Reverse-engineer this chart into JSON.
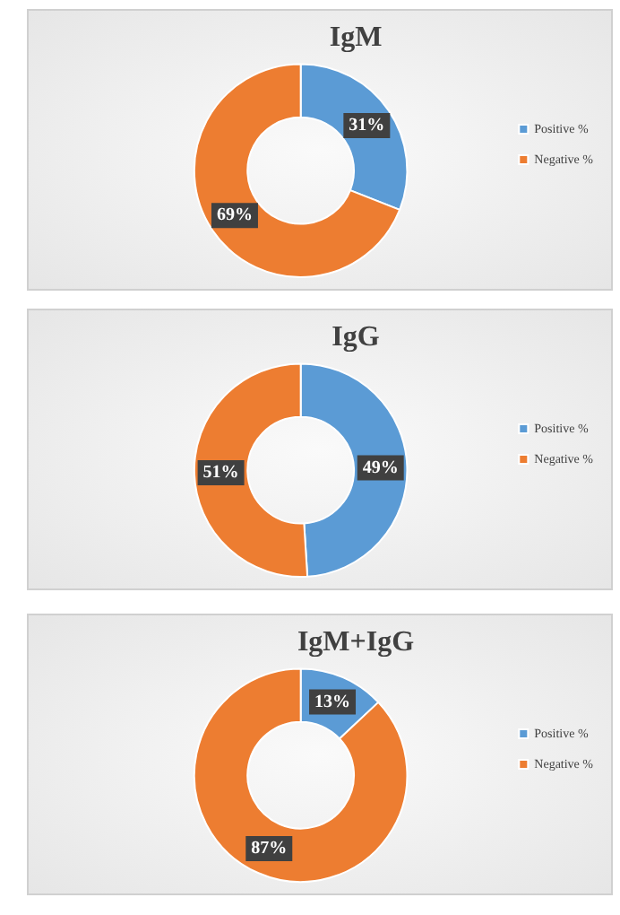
{
  "chart_data": [
    {
      "type": "donut",
      "title": "IgM",
      "categories": [
        "Positive %",
        "Negative %"
      ],
      "values": [
        31,
        69
      ],
      "colors": [
        "#5b9bd5",
        "#ed7d31"
      ],
      "value_labels": [
        "31%",
        "69%"
      ],
      "legend": "right"
    },
    {
      "type": "donut",
      "title": "IgG",
      "categories": [
        "Positive %",
        "Negative %"
      ],
      "values": [
        49,
        51
      ],
      "colors": [
        "#5b9bd5",
        "#ed7d31"
      ],
      "value_labels": [
        "49%",
        "51%"
      ],
      "legend": "right"
    },
    {
      "type": "donut",
      "title": "IgM+IgG",
      "categories": [
        "Positive %",
        "Negative %"
      ],
      "values": [
        13,
        87
      ],
      "colors": [
        "#5b9bd5",
        "#ed7d31"
      ],
      "value_labels": [
        "13%",
        "87%"
      ],
      "legend": "right"
    }
  ]
}
